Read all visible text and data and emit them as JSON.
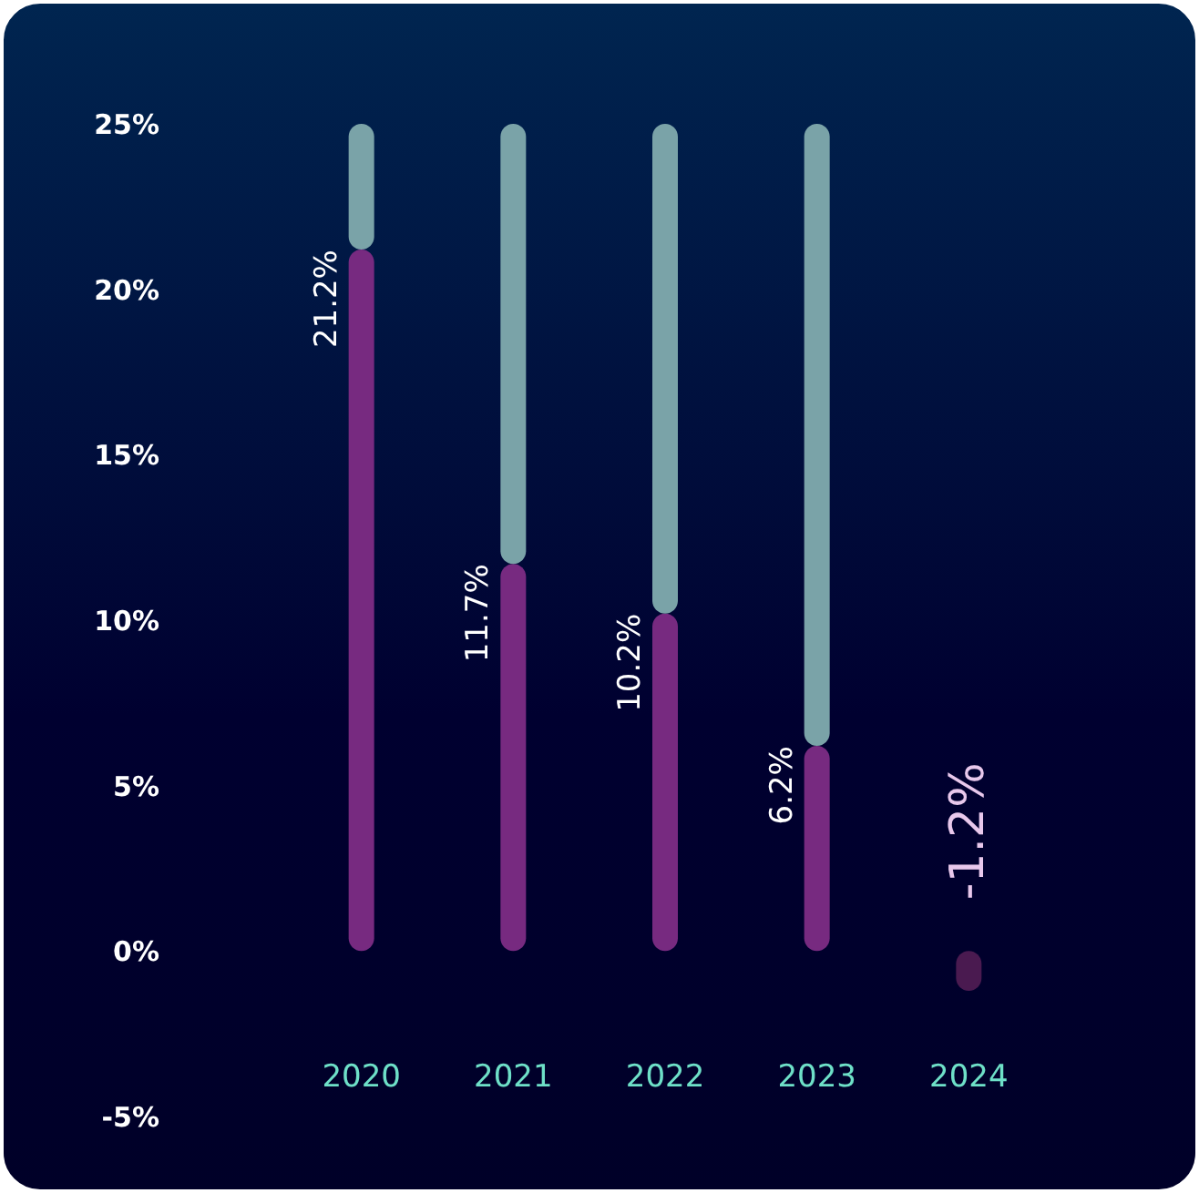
{
  "chart_data": {
    "type": "bar",
    "stacked": true,
    "categories": [
      "2020",
      "2021",
      "2022",
      "2023",
      "2024"
    ],
    "series": [
      {
        "colors": [
          "#772a80",
          "#772a80",
          "#772a80",
          "#772a80",
          "#4a1a50"
        ],
        "values": [
          21.2,
          11.7,
          10.2,
          6.2,
          -1.2
        ],
        "value_labels": [
          "21.2%",
          "11.7%",
          "10.2%",
          "6.2%",
          "-1.2%"
        ]
      },
      {
        "color": "#7aa3a8",
        "values": [
          3.8,
          13.3,
          14.8,
          18.8,
          null
        ]
      }
    ],
    "ylim": [
      -5,
      25
    ],
    "yticks": [
      {
        "value": -5,
        "label": "-5%"
      },
      {
        "value": 0,
        "label": "0%"
      },
      {
        "value": 5,
        "label": "5%"
      },
      {
        "value": 10,
        "label": "10%"
      },
      {
        "value": 15,
        "label": "15%"
      },
      {
        "value": 20,
        "label": "20%"
      },
      {
        "value": 25,
        "label": "25%"
      }
    ],
    "grid": false
  }
}
